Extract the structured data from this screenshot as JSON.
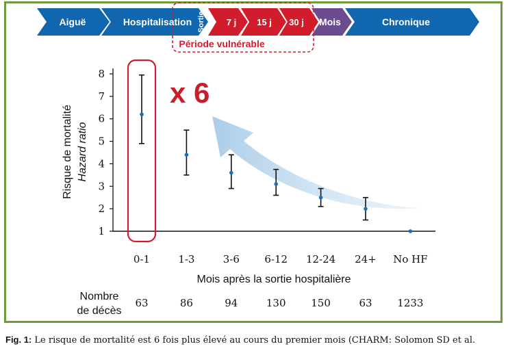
{
  "timeline": {
    "acute": "Aiguë",
    "hospitalisation": "Hospitalisation",
    "discharge": "Sortie",
    "day7": "7 j",
    "day15": "15 j",
    "day30": "30 j",
    "months": "Mois",
    "chronic": "Chronique",
    "vulnerable_period": "Période vulnérable",
    "colors": {
      "blue": "#1166b0",
      "red": "#d01c2b"
    }
  },
  "annotation": {
    "multiplier": "x 6",
    "color": "#c81e2a"
  },
  "chart_data": {
    "type": "scatter",
    "title": "",
    "xlabel": "Mois après la sortie hospitalière",
    "ylabel": "Risque de mortalité",
    "ylabel_sub": "Hazard ratio",
    "ylim": [
      1,
      8
    ],
    "yticks": [
      1,
      2,
      3,
      4,
      5,
      6,
      7,
      8
    ],
    "categories": [
      "0-1",
      "1-3",
      "3-6",
      "6-12",
      "12-24",
      "24+",
      "No HF"
    ],
    "series": [
      {
        "values": [
          6.2,
          4.4,
          3.6,
          3.1,
          2.5,
          2.0,
          1.0
        ],
        "ci_low": [
          4.9,
          3.5,
          2.9,
          2.6,
          2.1,
          1.5,
          null
        ],
        "ci_high": [
          7.95,
          5.5,
          4.4,
          3.75,
          2.9,
          2.5,
          null
        ]
      }
    ],
    "reference_line": 1,
    "highlight_category": "0-1",
    "deaths_label": [
      "Nombre",
      "de décès"
    ],
    "deaths": [
      "63",
      "86",
      "94",
      "130",
      "150",
      "63",
      "1233"
    ]
  },
  "caption": {
    "fig_label": "Fig. 1:",
    "text": "Le risque de mortalité est 6 fois plus élevé au cours du premier mois (CHARM: Solomon SD et al."
  }
}
